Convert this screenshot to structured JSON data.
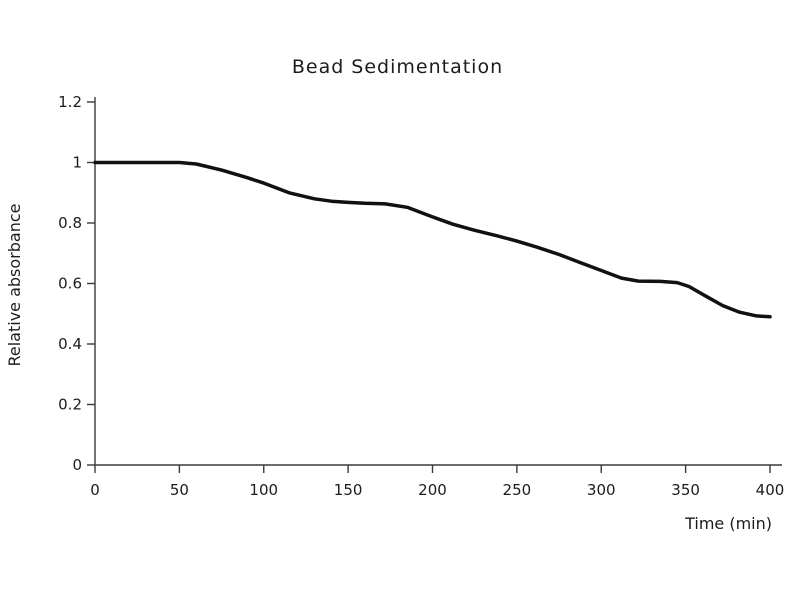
{
  "chart_data": {
    "type": "line",
    "title": "Bead Sedimentation",
    "xlabel": "Time (min)",
    "ylabel": "Relative absorbance",
    "xlim": [
      0,
      400
    ],
    "ylim": [
      0,
      1.2
    ],
    "x_ticks": [
      "0",
      "50",
      "100",
      "150",
      "200",
      "250",
      "300",
      "350",
      "400"
    ],
    "y_ticks": [
      "0",
      "0.2",
      "0.4",
      "0.6",
      "0.8",
      "1",
      "1.2"
    ],
    "grid": false,
    "legend_position": "none",
    "line_color": "#111111",
    "axis_color": "#3a3a3a",
    "series": [
      {
        "name": "relative-absorbance",
        "color": "#111111",
        "points": [
          [
            0,
            1.0
          ],
          [
            10,
            1.0
          ],
          [
            20,
            1.0
          ],
          [
            30,
            1.0
          ],
          [
            40,
            1.0
          ],
          [
            50,
            1.0
          ],
          [
            60,
            0.995
          ],
          [
            75,
            0.975
          ],
          [
            90,
            0.95
          ],
          [
            100,
            0.932
          ],
          [
            115,
            0.9
          ],
          [
            130,
            0.88
          ],
          [
            140,
            0.872
          ],
          [
            150,
            0.868
          ],
          [
            160,
            0.865
          ],
          [
            172,
            0.863
          ],
          [
            185,
            0.852
          ],
          [
            200,
            0.82
          ],
          [
            212,
            0.796
          ],
          [
            225,
            0.776
          ],
          [
            238,
            0.758
          ],
          [
            250,
            0.74
          ],
          [
            262,
            0.72
          ],
          [
            275,
            0.696
          ],
          [
            288,
            0.668
          ],
          [
            300,
            0.643
          ],
          [
            312,
            0.618
          ],
          [
            322,
            0.608
          ],
          [
            335,
            0.607
          ],
          [
            345,
            0.603
          ],
          [
            352,
            0.59
          ],
          [
            362,
            0.558
          ],
          [
            372,
            0.527
          ],
          [
            382,
            0.505
          ],
          [
            392,
            0.493
          ],
          [
            400,
            0.49
          ]
        ]
      }
    ]
  }
}
